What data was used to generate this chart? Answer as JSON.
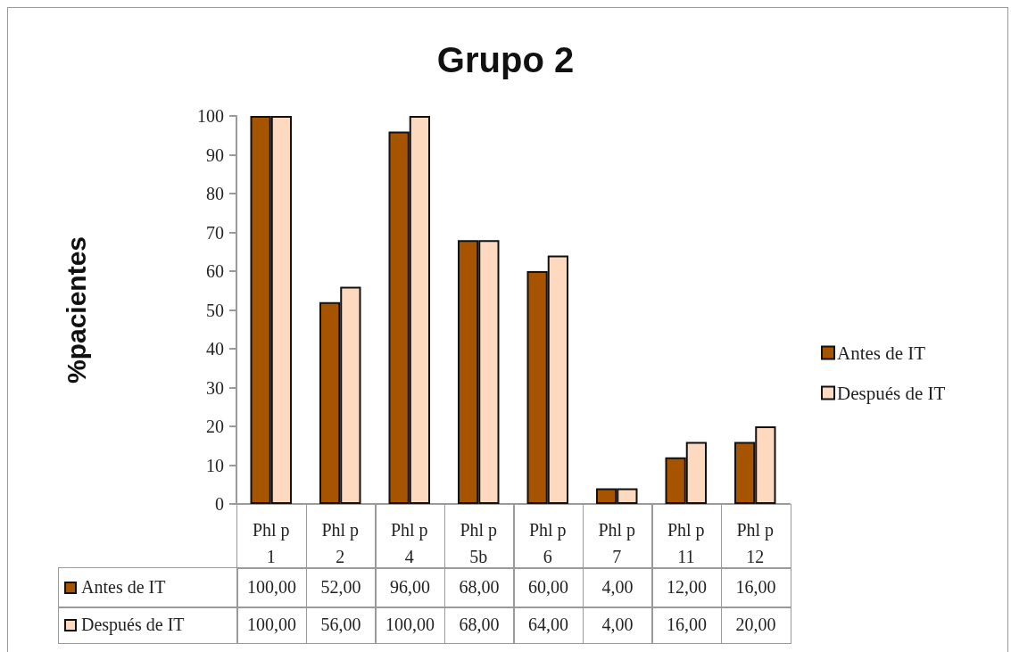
{
  "chart_data": {
    "type": "bar",
    "title": "Grupo 2",
    "ylabel": "%pacientes",
    "categories": [
      "Phl p 1",
      "Phl p 2",
      "Phl p 4",
      "Phl p 5b",
      "Phl p 6",
      "Phl p 7",
      "Phl p 11",
      "Phl p 12"
    ],
    "series": [
      {
        "name": "Antes de IT",
        "color": "#a65400",
        "values": [
          100,
          52,
          96,
          68,
          60,
          4,
          12,
          16
        ],
        "value_labels": [
          "100,00",
          "52,00",
          "96,00",
          "68,00",
          "60,00",
          "4,00",
          "12,00",
          "16,00"
        ]
      },
      {
        "name": "Después de IT",
        "color": "#fcd9bf",
        "values": [
          100,
          56,
          100,
          68,
          64,
          4,
          16,
          20
        ],
        "value_labels": [
          "100,00",
          "56,00",
          "100,00",
          "68,00",
          "64,00",
          "4,00",
          "16,00",
          "20,00"
        ]
      }
    ],
    "ylim": [
      0,
      100
    ],
    "yticks": [
      0,
      10,
      20,
      30,
      40,
      50,
      60,
      70,
      80,
      90,
      100
    ],
    "legend": "right"
  }
}
